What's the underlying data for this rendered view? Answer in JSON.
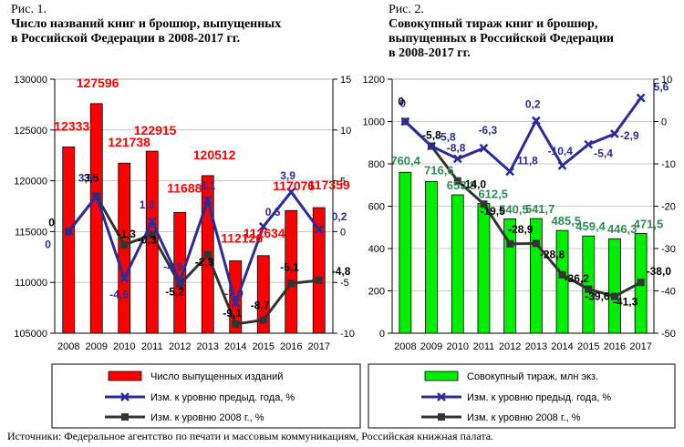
{
  "figures": [
    {
      "label": "Рис. 1.",
      "title_lines": [
        "Число названий книг и брошюр, выпущенных",
        "в Российской Федерации в 2008-2017 гг."
      ]
    },
    {
      "label": "Рис. 2.",
      "title_lines": [
        "Совокупный тираж книг и брошюр,",
        "выпущенных в Российской Федерации",
        "в 2008-2017 гг."
      ]
    }
  ],
  "source": "Источники: Федеральное агентство по печати и массовым коммуникациям, Российская книжная палата.",
  "chart_data": [
    {
      "type": "bar",
      "categories": [
        "2008",
        "2009",
        "2010",
        "2011",
        "2012",
        "2013",
        "2014",
        "2015",
        "2016",
        "2017"
      ],
      "ylim": [
        105000,
        130000
      ],
      "yticks": [
        "105000",
        "110000",
        "115000",
        "120000",
        "125000",
        "130000"
      ],
      "y2lim": [
        -10,
        15
      ],
      "y2ticks": [
        "-10",
        "-5",
        "0",
        "5",
        "10",
        "15"
      ],
      "grid": true,
      "legend_position": "bottom",
      "bar_color": "#ff0000",
      "series": [
        {
          "name": "Число выпущенных изданий",
          "kind": "bar",
          "axis": "left",
          "values": [
            123336,
            127596,
            121738,
            122915,
            116888,
            120512,
            112126,
            112634,
            117076,
            117359
          ],
          "labels": [
            "123336",
            "127596",
            "121738",
            "122915",
            "116888",
            "120512",
            "112126",
            "112634",
            "117076",
            "117359"
          ],
          "color": "#ff0000"
        },
        {
          "name": "Изм. к уровню предыд. года, %",
          "kind": "line",
          "axis": "right",
          "values": [
            0,
            3.5,
            -4.6,
            1.0,
            -4.9,
            3.1,
            -7.0,
            0.5,
            3.9,
            0.2
          ],
          "labels": [
            "0",
            "3,5",
            "-4,6",
            "1,0",
            "-4,9",
            "3,1",
            "-7,0",
            "0,5",
            "3,9",
            "0,2"
          ],
          "color": "#2b2b9c"
        },
        {
          "name": "Изм. к уровню 2008 г., %",
          "kind": "line",
          "axis": "right",
          "values": [
            0,
            3.5,
            -1.3,
            -0.3,
            -5.2,
            -2.3,
            -9.1,
            -8.7,
            -5.1,
            -4.8
          ],
          "labels": [
            "0",
            "3,5",
            "-1,3",
            "-0,3",
            "-5,2",
            "-2,3",
            "-9,1",
            "-8,7",
            "-5,1",
            "-4,8"
          ],
          "color": "#333333"
        }
      ]
    },
    {
      "type": "bar",
      "categories": [
        "2008",
        "2009",
        "2010",
        "2011",
        "2012",
        "2013",
        "2014",
        "2015",
        "2016",
        "2017"
      ],
      "ylim": [
        0,
        1200
      ],
      "yticks": [
        "0",
        "200",
        "400",
        "600",
        "800",
        "1000",
        "1200"
      ],
      "y2lim": [
        -50,
        10
      ],
      "y2ticks": [
        "-50",
        "-40",
        "-30",
        "-20",
        "-10",
        "0",
        "10"
      ],
      "grid": true,
      "legend_position": "bottom",
      "bar_color": "#00ee00",
      "series": [
        {
          "name": "Совокупный тираж, млн экз.",
          "kind": "bar",
          "axis": "left",
          "values": [
            760.4,
            716.6,
            653.8,
            612.5,
            540.5,
            541.7,
            485.5,
            459.4,
            446.3,
            471.5
          ],
          "labels": [
            "760,4",
            "716,6",
            "653,8",
            "612,5",
            "540,5",
            "541,7",
            "485,5",
            "459,4",
            "446,3",
            "471,5"
          ],
          "color": "#00ee00"
        },
        {
          "name": "Изм. к уровню предыд. года, %",
          "kind": "line",
          "axis": "right",
          "values": [
            0,
            -5.8,
            -8.8,
            -6.3,
            -11.8,
            0.2,
            -10.4,
            -5.4,
            -2.9,
            5.6
          ],
          "labels": [
            "0",
            "-5,8",
            "-8,8",
            "-6,3",
            "-11,8",
            "0,2",
            "-10,4",
            "-5,4",
            "-2,9",
            "5,6"
          ],
          "color": "#2b2b9c"
        },
        {
          "name": "Изм. к уровню 2008 г., %",
          "kind": "line",
          "axis": "right",
          "values": [
            0,
            -5.8,
            -14.0,
            -19.5,
            -28.9,
            -28.8,
            -36.2,
            -39.6,
            -41.3,
            -38.0
          ],
          "labels": [
            "0",
            "-5,8",
            "-14,0",
            "-19,5",
            "-28,9",
            "-28,8",
            "-36,2",
            "-39,6",
            "-41,3",
            "-38,0"
          ],
          "color": "#333333"
        }
      ]
    }
  ]
}
